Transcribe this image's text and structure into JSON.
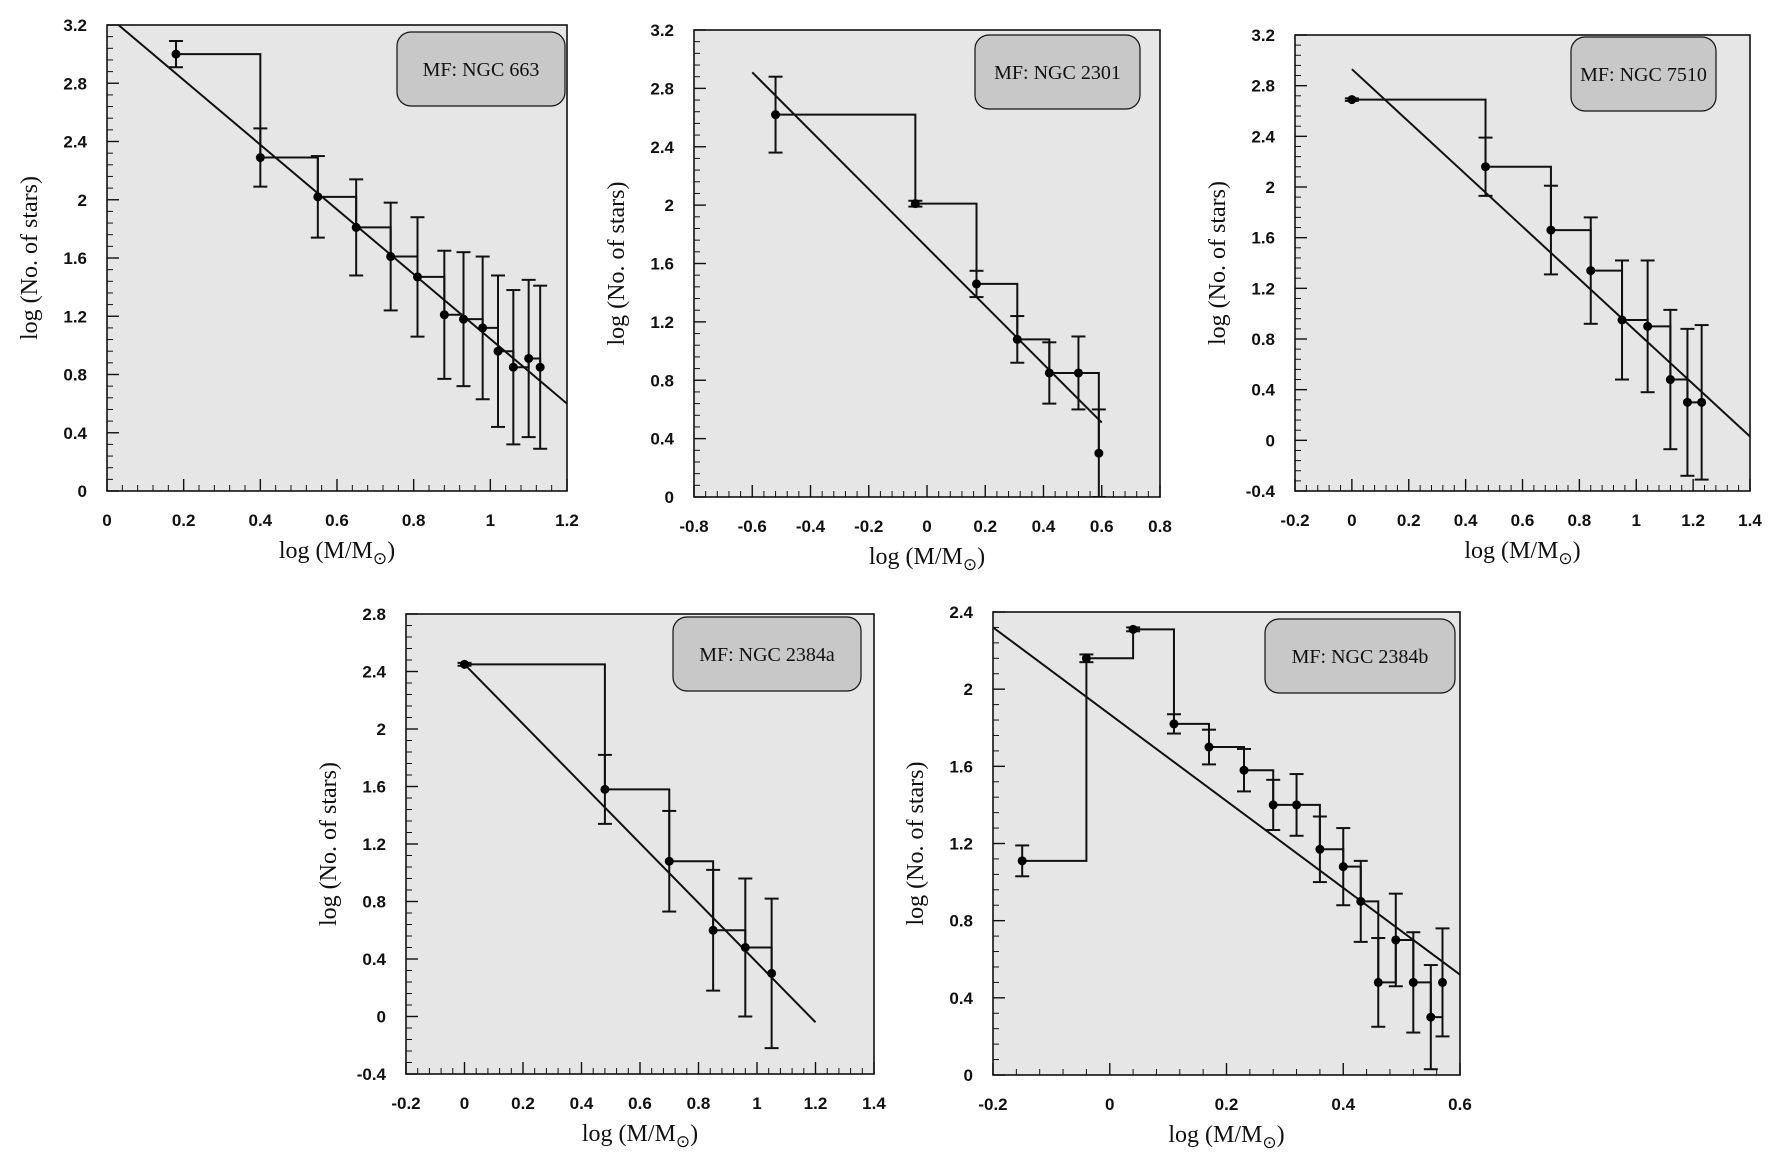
{
  "chart_data": [
    {
      "type": "scatter",
      "title": "MF: NGC 663",
      "xlabel": "log (M/M",
      "xlabel_suffix": "⊙",
      "xlabel_close": ")",
      "ylabel": "log (No. of stars)",
      "xlim": [
        0,
        1.2
      ],
      "ylim": [
        0,
        3.2
      ],
      "xticks": [
        0,
        0.2,
        0.4,
        0.6,
        0.8,
        1,
        1.2
      ],
      "yticks": [
        0,
        0.4,
        0.8,
        1.2,
        1.6,
        2,
        2.4,
        2.8,
        3.2
      ],
      "xtick_labels": [
        "0",
        "0.2",
        "0.4",
        "0.6",
        "0.8",
        "1",
        "1.2"
      ],
      "ytick_labels": [
        "0",
        "0.4",
        "0.8",
        "1.2",
        "1.6",
        "2",
        "2.4",
        "2.8",
        "3.2"
      ],
      "points": [
        {
          "x": 0.18,
          "y": 3.0,
          "err": 0.09
        },
        {
          "x": 0.4,
          "y": 2.29,
          "err": 0.2
        },
        {
          "x": 0.55,
          "y": 2.02,
          "err": 0.28
        },
        {
          "x": 0.65,
          "y": 1.81,
          "err": 0.33
        },
        {
          "x": 0.74,
          "y": 1.61,
          "err": 0.37
        },
        {
          "x": 0.81,
          "y": 1.47,
          "err": 0.41
        },
        {
          "x": 0.88,
          "y": 1.21,
          "err": 0.44
        },
        {
          "x": 0.93,
          "y": 1.18,
          "err": 0.46
        },
        {
          "x": 0.98,
          "y": 1.12,
          "err": 0.49
        },
        {
          "x": 1.02,
          "y": 0.96,
          "err": 0.52
        },
        {
          "x": 1.06,
          "y": 0.85,
          "err": 0.53
        },
        {
          "x": 1.1,
          "y": 0.91,
          "err": 0.54
        },
        {
          "x": 1.13,
          "y": 0.85,
          "err": 0.56
        }
      ],
      "fit_line": {
        "x": [
          0.03,
          1.2
        ],
        "y": [
          3.2,
          0.6
        ]
      }
    },
    {
      "type": "scatter",
      "title": "MF: NGC 2301",
      "xlabel": "log (M/M",
      "xlabel_suffix": "⊙",
      "xlabel_close": ")",
      "ylabel": "log (No. of stars)",
      "xlim": [
        -0.8,
        0.8
      ],
      "ylim": [
        0,
        3.2
      ],
      "xticks": [
        -0.8,
        -0.6,
        -0.4,
        -0.2,
        0,
        0.2,
        0.4,
        0.6,
        0.8
      ],
      "yticks": [
        0,
        0.4,
        0.8,
        1.2,
        1.6,
        2,
        2.4,
        2.8,
        3.2
      ],
      "xtick_labels": [
        "-0.8",
        "-0.6",
        "-0.4",
        "-0.2",
        "0",
        "0.2",
        "0.4",
        "0.6",
        "0.8"
      ],
      "ytick_labels": [
        "0",
        "0.4",
        "0.8",
        "1.2",
        "1.6",
        "2",
        "2.4",
        "2.8",
        "3.2"
      ],
      "points": [
        {
          "x": -0.52,
          "y": 2.62,
          "err": 0.26
        },
        {
          "x": -0.04,
          "y": 2.01,
          "err": 0.02
        },
        {
          "x": 0.17,
          "y": 1.46,
          "err": 0.09
        },
        {
          "x": 0.31,
          "y": 1.08,
          "err": 0.16
        },
        {
          "x": 0.42,
          "y": 0.85,
          "err": 0.21
        },
        {
          "x": 0.52,
          "y": 0.85,
          "err": 0.25
        },
        {
          "x": 0.59,
          "y": 0.3,
          "err": 0.3
        }
      ],
      "fit_line": {
        "x": [
          -0.6,
          0.6
        ],
        "y": [
          2.91,
          0.51
        ]
      }
    },
    {
      "type": "scatter",
      "title": "MF: NGC 7510",
      "xlabel": "log (M/M",
      "xlabel_suffix": "⊙",
      "xlabel_close": ")",
      "ylabel": "log (No. of stars)",
      "xlim": [
        -0.2,
        1.4
      ],
      "ylim": [
        -0.4,
        3.2
      ],
      "xticks": [
        -0.2,
        0,
        0.2,
        0.4,
        0.6,
        0.8,
        1,
        1.2,
        1.4
      ],
      "yticks": [
        -0.4,
        0,
        0.4,
        0.8,
        1.2,
        1.6,
        2,
        2.4,
        2.8,
        3.2
      ],
      "xtick_labels": [
        "-0.2",
        "0",
        "0.2",
        "0.4",
        "0.6",
        "0.8",
        "1",
        "1.2",
        "1.4"
      ],
      "ytick_labels": [
        "-0.4",
        "0",
        "0.4",
        "0.8",
        "1.2",
        "1.6",
        "2",
        "2.4",
        "2.8",
        "3.2"
      ],
      "points": [
        {
          "x": 0.0,
          "y": 2.69,
          "err": 0.01
        },
        {
          "x": 0.47,
          "y": 2.16,
          "err": 0.23
        },
        {
          "x": 0.7,
          "y": 1.66,
          "err": 0.35
        },
        {
          "x": 0.84,
          "y": 1.34,
          "err": 0.42
        },
        {
          "x": 0.95,
          "y": 0.95,
          "err": 0.47
        },
        {
          "x": 1.04,
          "y": 0.9,
          "err": 0.52
        },
        {
          "x": 1.12,
          "y": 0.48,
          "err": 0.55
        },
        {
          "x": 1.18,
          "y": 0.3,
          "err": 0.58
        },
        {
          "x": 1.23,
          "y": 0.3,
          "err": 0.61
        }
      ],
      "fit_line": {
        "x": [
          0.0,
          1.4
        ],
        "y": [
          2.93,
          0.03
        ]
      }
    },
    {
      "type": "scatter",
      "title": "MF: NGC 2384a",
      "xlabel": "log (M/M",
      "xlabel_suffix": "⊙",
      "xlabel_close": ")",
      "ylabel": "log (No. of stars)",
      "xlim": [
        -0.2,
        1.4
      ],
      "ylim": [
        -0.4,
        2.8
      ],
      "xticks": [
        -0.2,
        0,
        0.2,
        0.4,
        0.6,
        0.8,
        1,
        1.2,
        1.4
      ],
      "yticks": [
        -0.4,
        0,
        0.4,
        0.8,
        1.2,
        1.6,
        2,
        2.4,
        2.8
      ],
      "xtick_labels": [
        "-0.2",
        "0",
        "0.2",
        "0.4",
        "0.6",
        "0.8",
        "1",
        "1.2",
        "1.4"
      ],
      "ytick_labels": [
        "-0.4",
        "0",
        "0.4",
        "0.8",
        "1.2",
        "1.6",
        "2",
        "2.4",
        "2.8"
      ],
      "points": [
        {
          "x": 0.0,
          "y": 2.45,
          "err": 0.01
        },
        {
          "x": 0.48,
          "y": 1.58,
          "err": 0.24
        },
        {
          "x": 0.7,
          "y": 1.08,
          "err": 0.35
        },
        {
          "x": 0.85,
          "y": 0.6,
          "err": 0.42
        },
        {
          "x": 0.96,
          "y": 0.48,
          "err": 0.48
        },
        {
          "x": 1.05,
          "y": 0.3,
          "err": 0.52
        }
      ],
      "fit_line": {
        "x": [
          0.0,
          1.2
        ],
        "y": [
          2.45,
          -0.04
        ]
      }
    },
    {
      "type": "scatter",
      "title": "MF: NGC 2384b",
      "xlabel": "log (M/M",
      "xlabel_suffix": "⊙",
      "xlabel_close": ")",
      "ylabel": "log (No. of stars)",
      "xlim": [
        -0.2,
        0.6
      ],
      "ylim": [
        0,
        2.4
      ],
      "xticks": [
        -0.2,
        0,
        0.2,
        0.4,
        0.6
      ],
      "yticks": [
        0,
        0.4,
        0.8,
        1.2,
        1.6,
        2,
        2.4
      ],
      "xtick_labels": [
        "-0.2",
        "0",
        "0.2",
        "0.4",
        "0.6"
      ],
      "ytick_labels": [
        "0",
        "0.4",
        "0.8",
        "1.2",
        "1.6",
        "2",
        "2.4"
      ],
      "points": [
        {
          "x": -0.15,
          "y": 1.11,
          "err": 0.08
        },
        {
          "x": -0.04,
          "y": 2.16,
          "err": 0.02
        },
        {
          "x": 0.04,
          "y": 2.31,
          "err": 0.01
        },
        {
          "x": 0.11,
          "y": 1.82,
          "err": 0.05
        },
        {
          "x": 0.17,
          "y": 1.7,
          "err": 0.09
        },
        {
          "x": 0.23,
          "y": 1.58,
          "err": 0.11
        },
        {
          "x": 0.28,
          "y": 1.4,
          "err": 0.13
        },
        {
          "x": 0.32,
          "y": 1.4,
          "err": 0.16
        },
        {
          "x": 0.36,
          "y": 1.17,
          "err": 0.17
        },
        {
          "x": 0.4,
          "y": 1.08,
          "err": 0.2
        },
        {
          "x": 0.43,
          "y": 0.9,
          "err": 0.21
        },
        {
          "x": 0.46,
          "y": 0.48,
          "err": 0.23
        },
        {
          "x": 0.49,
          "y": 0.7,
          "err": 0.24
        },
        {
          "x": 0.52,
          "y": 0.48,
          "err": 0.26
        },
        {
          "x": 0.55,
          "y": 0.3,
          "err": 0.27
        },
        {
          "x": 0.57,
          "y": 0.48,
          "err": 0.28
        }
      ],
      "fit_line": {
        "x": [
          -0.2,
          0.6
        ],
        "y": [
          2.32,
          0.52
        ]
      }
    }
  ]
}
